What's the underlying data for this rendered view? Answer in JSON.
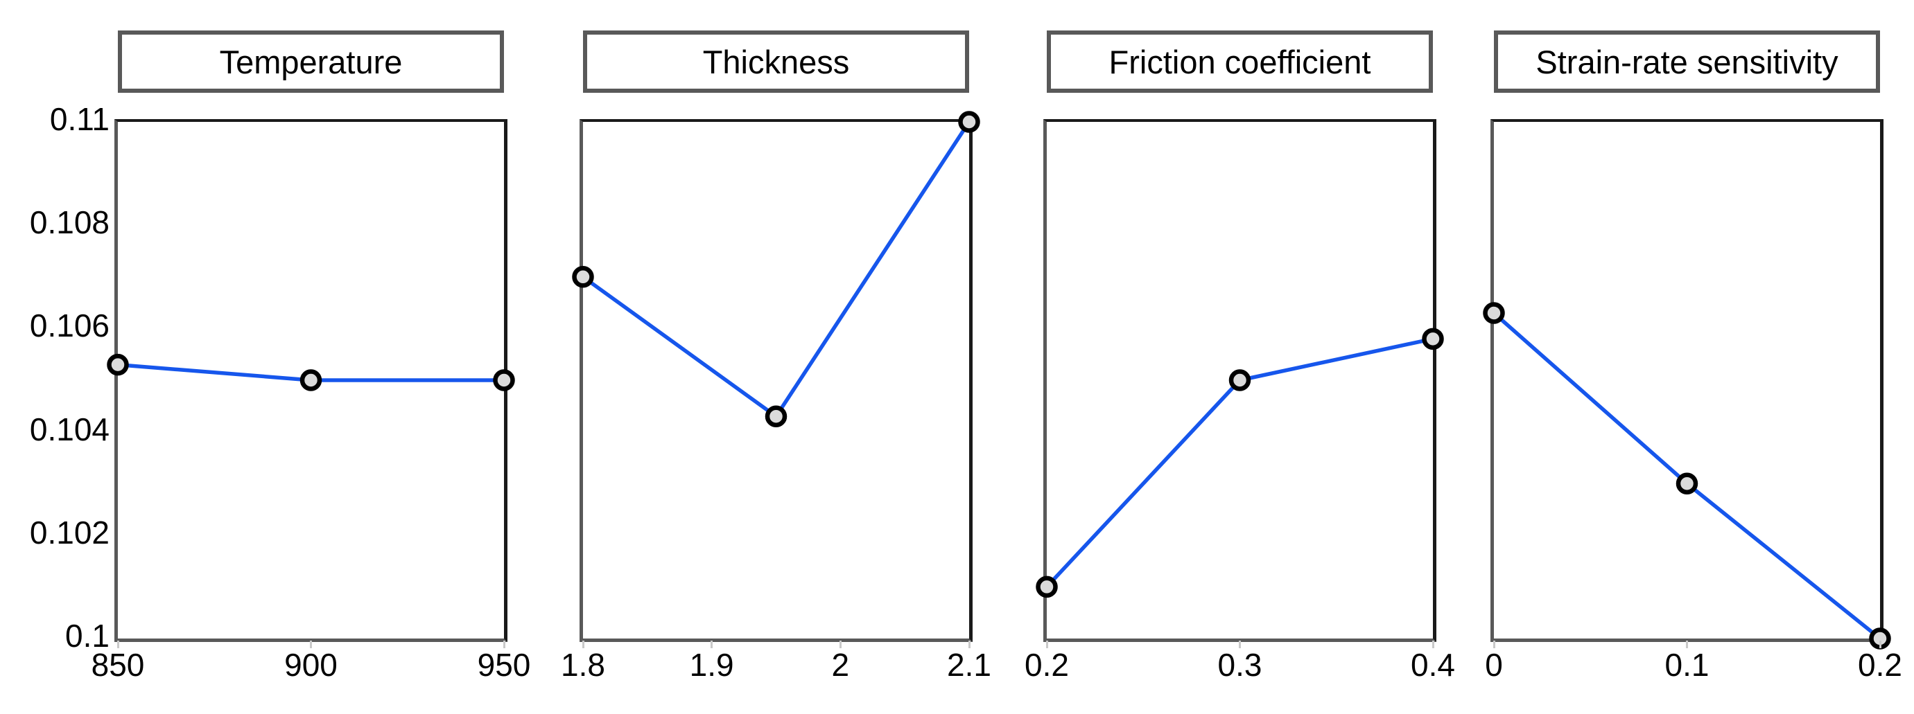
{
  "y_axis": {
    "min": 0.1,
    "max": 0.11,
    "ticks": [
      {
        "label": "0.11",
        "value": 0.11
      },
      {
        "label": "0.108",
        "value": 0.108
      },
      {
        "label": "0.106",
        "value": 0.106
      },
      {
        "label": "0.104",
        "value": 0.104
      },
      {
        "label": "0.102",
        "value": 0.102
      },
      {
        "label": "0.1",
        "value": 0.1
      }
    ]
  },
  "chart_data": [
    {
      "type": "line",
      "title": "Temperature",
      "x": [
        850,
        900,
        950
      ],
      "y": [
        0.1053,
        0.105,
        0.105
      ],
      "xlim": [
        850,
        950
      ],
      "ylim": [
        0.1,
        0.11
      ],
      "grid": false,
      "x_ticks": [
        {
          "label": "850",
          "value": 850
        },
        {
          "label": "900",
          "value": 900
        },
        {
          "label": "950",
          "value": 950
        }
      ]
    },
    {
      "type": "line",
      "title": "Thickness",
      "x": [
        1.8,
        1.95,
        2.1
      ],
      "y": [
        0.107,
        0.1043,
        0.11
      ],
      "xlim": [
        1.8,
        2.1
      ],
      "ylim": [
        0.1,
        0.11
      ],
      "grid": false,
      "x_ticks": [
        {
          "label": "1.8",
          "value": 1.8
        },
        {
          "label": "1.9",
          "value": 1.9
        },
        {
          "label": "2",
          "value": 2
        },
        {
          "label": "2.1",
          "value": 2.1
        }
      ]
    },
    {
      "type": "line",
      "title": "Friction coefficient",
      "x": [
        0.2,
        0.3,
        0.4
      ],
      "y": [
        0.101,
        0.105,
        0.1058
      ],
      "xlim": [
        0.2,
        0.4
      ],
      "ylim": [
        0.1,
        0.11
      ],
      "grid": false,
      "x_ticks": [
        {
          "label": "0.2",
          "value": 0.2
        },
        {
          "label": "0.3",
          "value": 0.3
        },
        {
          "label": "0.4",
          "value": 0.4
        }
      ]
    },
    {
      "type": "line",
      "title": "Strain-rate sensitivity",
      "x": [
        0,
        0.1,
        0.2
      ],
      "y": [
        0.1063,
        0.103,
        0.1
      ],
      "xlim": [
        0,
        0.2
      ],
      "ylim": [
        0.1,
        0.11
      ],
      "grid": false,
      "x_ticks": [
        {
          "label": "0",
          "value": 0
        },
        {
          "label": "0.1",
          "value": 0.1
        },
        {
          "label": "0.2",
          "value": 0.2
        }
      ]
    }
  ],
  "style": {
    "line_color": "#1656EC",
    "marker_fill": "#DBDBDB",
    "marker_stroke": "#000000",
    "frame_black": "#1A1A1A",
    "frame_gray": "#595959",
    "tick_mark_color": "#C9C9C9",
    "text_color": "#000000",
    "background": "#FFFFFF"
  }
}
